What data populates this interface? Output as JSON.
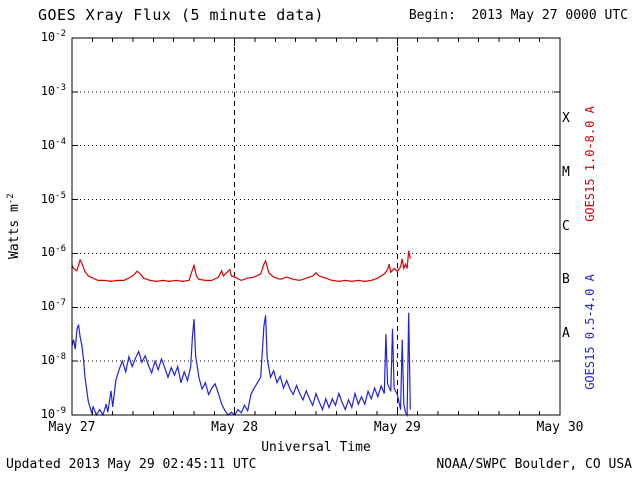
{
  "header": {
    "title": "GOES Xray Flux (5 minute data)",
    "begin_label": "Begin:  2013 May 27 0000 UTC"
  },
  "footer": {
    "updated": "Updated 2013 May 29 02:45:11 UTC",
    "credit": "NOAA/SWPC Boulder, CO USA"
  },
  "chart_data": {
    "type": "line",
    "title": "GOES Xray Flux (5 minute data)",
    "begin_label": "Begin:  2013 May 27 0000 UTC",
    "xlabel": "Universal Time",
    "ylabel_base": "Watts m",
    "ylabel_sup": "-2",
    "x_axis": {
      "range_days": [
        0,
        3
      ],
      "ticks": [
        "May 27",
        "May 28",
        "May 29",
        "May 30"
      ],
      "minor_tick_hours": 3
    },
    "y_axis": {
      "scale": "log",
      "unit": "Watts m-2",
      "exponent_range": [
        -2,
        -9
      ],
      "tick_exponents": [
        -2,
        -3,
        -4,
        -5,
        -6,
        -7,
        -8,
        -9
      ]
    },
    "grid": {
      "h_dotted_exponents": [
        -3,
        -4,
        -5,
        -6,
        -7,
        -8
      ],
      "v_dashed_days": [
        1,
        2
      ]
    },
    "flare_classes": [
      {
        "label": "X",
        "band": [
          -4,
          -3
        ]
      },
      {
        "label": "M",
        "band": [
          -5,
          -4
        ]
      },
      {
        "label": "C",
        "band": [
          -6,
          -5
        ]
      },
      {
        "label": "B",
        "band": [
          -7,
          -6
        ]
      },
      {
        "label": "A",
        "band": [
          -8,
          -7
        ]
      }
    ],
    "series": [
      {
        "name": "GOES15 1.0-8.0 A",
        "data_name": "long-wave-series-line",
        "color": "#dd0000",
        "points_format": "[days_since_begin, log10_watts_m2]",
        "points": [
          [
            0.0,
            -6.22
          ],
          [
            0.01,
            -6.28
          ],
          [
            0.03,
            -6.32
          ],
          [
            0.05,
            -6.12
          ],
          [
            0.06,
            -6.18
          ],
          [
            0.08,
            -6.34
          ],
          [
            0.1,
            -6.42
          ],
          [
            0.13,
            -6.46
          ],
          [
            0.16,
            -6.5
          ],
          [
            0.2,
            -6.5
          ],
          [
            0.24,
            -6.52
          ],
          [
            0.28,
            -6.5
          ],
          [
            0.32,
            -6.5
          ],
          [
            0.36,
            -6.44
          ],
          [
            0.38,
            -6.4
          ],
          [
            0.4,
            -6.33
          ],
          [
            0.42,
            -6.38
          ],
          [
            0.44,
            -6.46
          ],
          [
            0.48,
            -6.5
          ],
          [
            0.52,
            -6.52
          ],
          [
            0.56,
            -6.5
          ],
          [
            0.6,
            -6.52
          ],
          [
            0.64,
            -6.5
          ],
          [
            0.68,
            -6.52
          ],
          [
            0.72,
            -6.5
          ],
          [
            0.735,
            -6.35
          ],
          [
            0.75,
            -6.22
          ],
          [
            0.765,
            -6.42
          ],
          [
            0.78,
            -6.48
          ],
          [
            0.82,
            -6.5
          ],
          [
            0.86,
            -6.5
          ],
          [
            0.9,
            -6.44
          ],
          [
            0.92,
            -6.32
          ],
          [
            0.93,
            -6.42
          ],
          [
            0.95,
            -6.36
          ],
          [
            0.97,
            -6.3
          ],
          [
            0.98,
            -6.42
          ],
          [
            1.0,
            -6.44
          ],
          [
            1.04,
            -6.5
          ],
          [
            1.08,
            -6.46
          ],
          [
            1.12,
            -6.44
          ],
          [
            1.16,
            -6.38
          ],
          [
            1.18,
            -6.2
          ],
          [
            1.19,
            -6.14
          ],
          [
            1.21,
            -6.36
          ],
          [
            1.24,
            -6.44
          ],
          [
            1.28,
            -6.48
          ],
          [
            1.32,
            -6.44
          ],
          [
            1.36,
            -6.48
          ],
          [
            1.4,
            -6.5
          ],
          [
            1.44,
            -6.46
          ],
          [
            1.48,
            -6.42
          ],
          [
            1.5,
            -6.36
          ],
          [
            1.52,
            -6.42
          ],
          [
            1.56,
            -6.46
          ],
          [
            1.6,
            -6.5
          ],
          [
            1.64,
            -6.52
          ],
          [
            1.68,
            -6.5
          ],
          [
            1.72,
            -6.52
          ],
          [
            1.76,
            -6.5
          ],
          [
            1.8,
            -6.52
          ],
          [
            1.84,
            -6.5
          ],
          [
            1.88,
            -6.46
          ],
          [
            1.9,
            -6.42
          ],
          [
            1.92,
            -6.38
          ],
          [
            1.94,
            -6.3
          ],
          [
            1.95,
            -6.2
          ],
          [
            1.96,
            -6.35
          ],
          [
            1.98,
            -6.28
          ],
          [
            2.0,
            -6.33
          ],
          [
            2.02,
            -6.25
          ],
          [
            2.03,
            -6.1
          ],
          [
            2.04,
            -6.28
          ],
          [
            2.05,
            -6.2
          ],
          [
            2.06,
            -6.28
          ],
          [
            2.07,
            -5.95
          ],
          [
            2.08,
            -6.1
          ]
        ]
      },
      {
        "name": "GOES15 0.5-4.0 A",
        "data_name": "short-wave-series-line",
        "color": "#2222dd",
        "points_format": "[days_since_begin, log10_watts_m2]",
        "points": [
          [
            0.0,
            -7.72
          ],
          [
            0.01,
            -7.6
          ],
          [
            0.02,
            -7.78
          ],
          [
            0.03,
            -7.42
          ],
          [
            0.04,
            -7.32
          ],
          [
            0.05,
            -7.55
          ],
          [
            0.06,
            -7.7
          ],
          [
            0.07,
            -7.95
          ],
          [
            0.08,
            -8.3
          ],
          [
            0.1,
            -8.75
          ],
          [
            0.12,
            -8.95
          ],
          [
            0.13,
            -8.85
          ],
          [
            0.15,
            -9.0
          ],
          [
            0.17,
            -8.9
          ],
          [
            0.19,
            -9.0
          ],
          [
            0.21,
            -8.8
          ],
          [
            0.22,
            -8.95
          ],
          [
            0.24,
            -8.55
          ],
          [
            0.25,
            -8.85
          ],
          [
            0.27,
            -8.35
          ],
          [
            0.29,
            -8.15
          ],
          [
            0.31,
            -8.0
          ],
          [
            0.33,
            -8.2
          ],
          [
            0.35,
            -7.92
          ],
          [
            0.37,
            -8.1
          ],
          [
            0.39,
            -7.95
          ],
          [
            0.41,
            -7.82
          ],
          [
            0.43,
            -8.02
          ],
          [
            0.45,
            -7.9
          ],
          [
            0.47,
            -8.08
          ],
          [
            0.49,
            -8.22
          ],
          [
            0.51,
            -8.0
          ],
          [
            0.53,
            -8.16
          ],
          [
            0.55,
            -7.96
          ],
          [
            0.57,
            -8.12
          ],
          [
            0.59,
            -8.3
          ],
          [
            0.61,
            -8.12
          ],
          [
            0.63,
            -8.26
          ],
          [
            0.65,
            -8.1
          ],
          [
            0.67,
            -8.4
          ],
          [
            0.69,
            -8.2
          ],
          [
            0.71,
            -8.36
          ],
          [
            0.73,
            -8.1
          ],
          [
            0.74,
            -7.55
          ],
          [
            0.75,
            -7.22
          ],
          [
            0.76,
            -7.9
          ],
          [
            0.78,
            -8.3
          ],
          [
            0.8,
            -8.52
          ],
          [
            0.82,
            -8.4
          ],
          [
            0.84,
            -8.62
          ],
          [
            0.86,
            -8.5
          ],
          [
            0.88,
            -8.42
          ],
          [
            0.9,
            -8.6
          ],
          [
            0.92,
            -8.8
          ],
          [
            0.94,
            -8.92
          ],
          [
            0.96,
            -9.0
          ],
          [
            0.98,
            -8.95
          ],
          [
            1.0,
            -9.0
          ],
          [
            1.02,
            -8.9
          ],
          [
            1.04,
            -8.96
          ],
          [
            1.06,
            -8.82
          ],
          [
            1.08,
            -8.92
          ],
          [
            1.1,
            -8.62
          ],
          [
            1.12,
            -8.5
          ],
          [
            1.14,
            -8.4
          ],
          [
            1.16,
            -8.3
          ],
          [
            1.18,
            -7.35
          ],
          [
            1.19,
            -7.15
          ],
          [
            1.2,
            -7.95
          ],
          [
            1.22,
            -8.3
          ],
          [
            1.24,
            -8.18
          ],
          [
            1.26,
            -8.4
          ],
          [
            1.28,
            -8.28
          ],
          [
            1.3,
            -8.5
          ],
          [
            1.32,
            -8.36
          ],
          [
            1.34,
            -8.52
          ],
          [
            1.36,
            -8.62
          ],
          [
            1.38,
            -8.45
          ],
          [
            1.4,
            -8.6
          ],
          [
            1.42,
            -8.72
          ],
          [
            1.44,
            -8.55
          ],
          [
            1.46,
            -8.7
          ],
          [
            1.48,
            -8.82
          ],
          [
            1.5,
            -8.6
          ],
          [
            1.52,
            -8.76
          ],
          [
            1.54,
            -8.9
          ],
          [
            1.56,
            -8.7
          ],
          [
            1.58,
            -8.86
          ],
          [
            1.6,
            -8.7
          ],
          [
            1.62,
            -8.82
          ],
          [
            1.64,
            -8.6
          ],
          [
            1.66,
            -8.76
          ],
          [
            1.68,
            -8.9
          ],
          [
            1.7,
            -8.72
          ],
          [
            1.72,
            -8.86
          ],
          [
            1.74,
            -8.6
          ],
          [
            1.76,
            -8.8
          ],
          [
            1.78,
            -8.66
          ],
          [
            1.8,
            -8.8
          ],
          [
            1.82,
            -8.56
          ],
          [
            1.84,
            -8.7
          ],
          [
            1.86,
            -8.5
          ],
          [
            1.88,
            -8.66
          ],
          [
            1.9,
            -8.46
          ],
          [
            1.92,
            -8.6
          ],
          [
            1.93,
            -7.5
          ],
          [
            1.94,
            -8.42
          ],
          [
            1.96,
            -8.56
          ],
          [
            1.97,
            -7.4
          ],
          [
            1.98,
            -8.5
          ],
          [
            2.0,
            -8.62
          ],
          [
            2.02,
            -8.9
          ],
          [
            2.03,
            -7.6
          ],
          [
            2.04,
            -8.8
          ],
          [
            2.05,
            -8.95
          ],
          [
            2.06,
            -9.0
          ],
          [
            2.07,
            -7.1
          ],
          [
            2.08,
            -8.9
          ]
        ]
      }
    ]
  }
}
